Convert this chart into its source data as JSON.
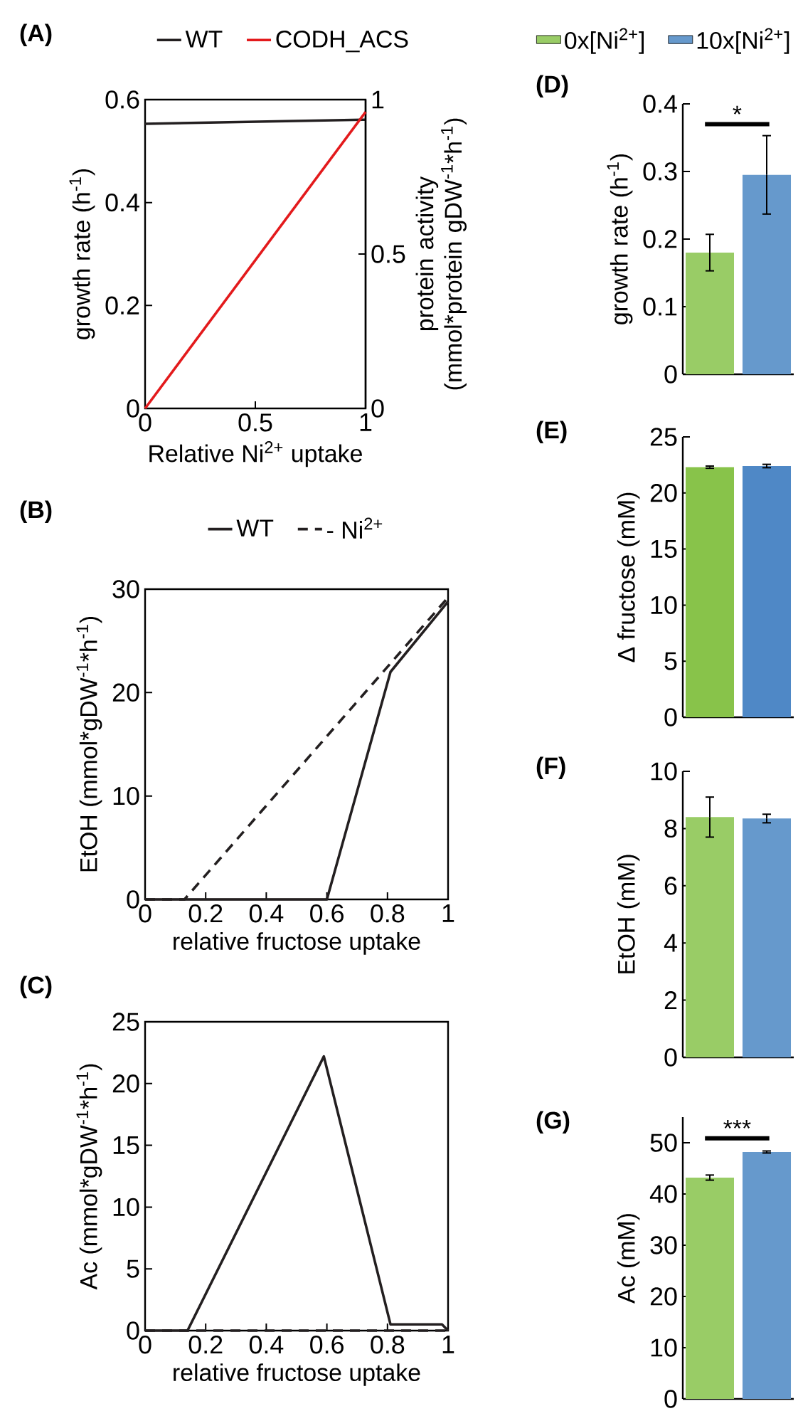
{
  "chart_data": [
    {
      "type": "line",
      "title": "(A)",
      "xlabel": "Relative Ni$^{2+}$ uptake",
      "ylabel": "growth rate (h$^{-1}$)",
      "y2label": "protein activity (mmol*protein gDW$^{-1}$*h$^{-1}$)",
      "x": [
        0,
        1
      ],
      "series": [
        {
          "name": "WT",
          "color": "#231f20",
          "values": [
            0.553,
            0.561
          ]
        },
        {
          "name": "CODH_ACS",
          "color": "#e31a1c",
          "axis": "y2",
          "values": [
            0,
            0.96
          ]
        }
      ],
      "xlim": [
        0,
        1
      ],
      "xticks": [
        0,
        0.5,
        1
      ],
      "ylim": [
        0,
        0.6
      ],
      "yticks": [
        0,
        0.2,
        0.4,
        0.6
      ],
      "y2lim": [
        0,
        1
      ],
      "y2ticks": [
        0,
        0.5,
        1
      ],
      "legend": "top"
    },
    {
      "type": "line",
      "title": "(B)",
      "xlabel": "relative fructose uptake",
      "ylabel": "EtOH (mmol*gDW$^{-1}$*h$^{-1}$)",
      "series": [
        {
          "name": "WT",
          "color": "#231f20",
          "line_style": "solid",
          "x": [
            0,
            0.6,
            0.81,
            1
          ],
          "values": [
            0,
            0,
            22,
            28.8
          ]
        },
        {
          "name": "- Ni$^{2+}$",
          "color": "#231f20",
          "line_style": "dashed",
          "x": [
            0,
            0.13,
            1
          ],
          "values": [
            0,
            0,
            29.2
          ]
        }
      ],
      "xlim": [
        0,
        1
      ],
      "xticks": [
        0,
        0.2,
        0.4,
        0.6,
        0.8,
        1
      ],
      "ylim": [
        0,
        30
      ],
      "yticks": [
        0,
        10,
        20,
        30
      ],
      "legend": "top"
    },
    {
      "type": "line",
      "title": "(C)",
      "xlabel": "relative fructose uptake",
      "ylabel": "Ac (mmol*gDW$^{-1}$*h$^{-1}$)",
      "series": [
        {
          "color": "#231f20",
          "line_style": "solid",
          "x": [
            0,
            0.14,
            0.59,
            0.81,
            0.98,
            1
          ],
          "values": [
            0,
            0,
            22.2,
            0.5,
            0.5,
            0
          ]
        },
        {
          "color": "#231f20",
          "line_style": "dashed",
          "x": [
            0,
            1
          ],
          "values": [
            0,
            0
          ]
        }
      ],
      "xlim": [
        0,
        1
      ],
      "xticks": [
        0,
        0.2,
        0.4,
        0.6,
        0.8,
        1
      ],
      "ylim": [
        0,
        25
      ],
      "yticks": [
        0,
        5,
        10,
        15,
        20,
        25
      ]
    },
    {
      "type": "bar",
      "title": "(D)",
      "ylabel": "growth rate (h$^{-1}$)",
      "categories": [
        null
      ],
      "series": [
        {
          "name": "0x[Ni$^{2+}$]",
          "color": "#99cc66",
          "values": [
            0.18
          ],
          "errors": [
            0.027
          ]
        },
        {
          "name": "10x[Ni$^{2+}$]",
          "color": "#6699cc",
          "values": [
            0.295
          ],
          "errors": [
            0.058
          ]
        }
      ],
      "ylim": [
        0,
        0.4
      ],
      "yticks": [
        0,
        0.1,
        0.2,
        0.3,
        0.4
      ],
      "legend": "top",
      "annotations": [
        "*"
      ]
    },
    {
      "type": "bar",
      "title": "(E)",
      "ylabel": "Δ fructose (mM)",
      "categories": [
        null
      ],
      "series": [
        {
          "color": "#88c34a",
          "values": [
            22.3
          ],
          "errors": [
            0.1
          ]
        },
        {
          "color": "#4f88c6",
          "values": [
            22.4
          ],
          "errors": [
            0.15
          ]
        }
      ],
      "ylim": [
        0,
        25
      ],
      "yticks": [
        0,
        5,
        10,
        15,
        20,
        25
      ]
    },
    {
      "type": "bar",
      "title": "(F)",
      "ylabel": "EtOH (mM)",
      "categories": [
        null
      ],
      "series": [
        {
          "color": "#99cc66",
          "values": [
            8.4
          ],
          "errors": [
            0.7
          ]
        },
        {
          "color": "#6699cc",
          "values": [
            8.35
          ],
          "errors": [
            0.15
          ]
        }
      ],
      "ylim": [
        0,
        10
      ],
      "yticks": [
        0,
        2,
        4,
        6,
        8,
        10
      ]
    },
    {
      "type": "bar",
      "title": "(G)",
      "ylabel": "Ac (mM)",
      "categories": [
        null
      ],
      "series": [
        {
          "color": "#99cc66",
          "values": [
            43.2
          ],
          "errors": [
            0.5
          ]
        },
        {
          "color": "#6699cc",
          "values": [
            48.2
          ],
          "errors": [
            0.2
          ]
        }
      ],
      "ylim": [
        0,
        55
      ],
      "yticks": [
        0,
        10,
        20,
        30,
        40,
        50
      ],
      "annotations": [
        "***"
      ]
    }
  ]
}
